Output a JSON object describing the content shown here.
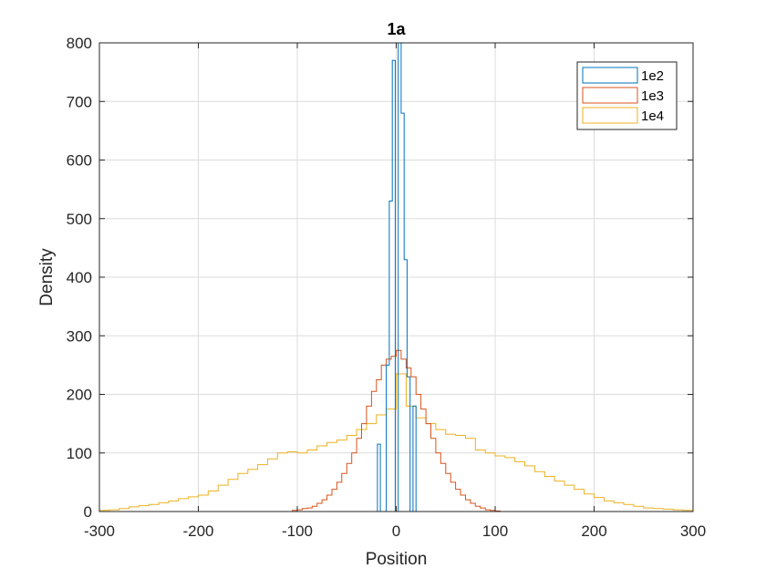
{
  "chart_data": {
    "type": "histogram",
    "title": "1a",
    "xlabel": "Position",
    "ylabel": "Density",
    "xlim": [
      -300,
      300
    ],
    "ylim": [
      0,
      800
    ],
    "xticks": [
      -300,
      -200,
      -100,
      0,
      100,
      200,
      300
    ],
    "yticks": [
      0,
      100,
      200,
      300,
      400,
      500,
      600,
      700,
      800
    ],
    "grid": true,
    "legend_position": "top-right",
    "series": [
      {
        "name": "1e2",
        "color": "#0072BD",
        "style": "stairs",
        "edges": [
          -22,
          -19,
          -16,
          -13,
          -10,
          -7,
          -4,
          -1,
          2,
          5,
          8,
          11,
          14,
          17,
          20,
          23
        ],
        "values": [
          0,
          115,
          0,
          0,
          250,
          530,
          770,
          0,
          800,
          680,
          430,
          230,
          0,
          180,
          0
        ]
      },
      {
        "name": "1e3",
        "color": "#D95319",
        "style": "stairs",
        "edges": [
          -105,
          -100,
          -95,
          -90,
          -85,
          -80,
          -75,
          -70,
          -65,
          -60,
          -55,
          -50,
          -45,
          -40,
          -35,
          -30,
          -25,
          -20,
          -15,
          -10,
          -5,
          0,
          5,
          10,
          15,
          20,
          25,
          30,
          35,
          40,
          45,
          50,
          55,
          60,
          65,
          70,
          75,
          80,
          85,
          90,
          95,
          100,
          105
        ],
        "values": [
          2,
          3,
          5,
          6,
          9,
          14,
          20,
          28,
          38,
          50,
          65,
          82,
          100,
          125,
          150,
          180,
          205,
          225,
          250,
          260,
          265,
          275,
          260,
          245,
          230,
          200,
          175,
          150,
          125,
          100,
          82,
          65,
          50,
          38,
          28,
          20,
          14,
          9,
          6,
          3,
          2,
          1
        ]
      },
      {
        "name": "1e4",
        "color": "#EDB120",
        "style": "stairs",
        "edges": [
          -300,
          -290,
          -280,
          -270,
          -260,
          -250,
          -240,
          -230,
          -220,
          -210,
          -200,
          -190,
          -180,
          -170,
          -160,
          -150,
          -140,
          -130,
          -120,
          -110,
          -100,
          -90,
          -80,
          -70,
          -60,
          -50,
          -40,
          -30,
          -20,
          -10,
          0,
          10,
          20,
          30,
          40,
          50,
          60,
          70,
          80,
          90,
          100,
          110,
          120,
          130,
          140,
          150,
          160,
          170,
          180,
          190,
          200,
          210,
          220,
          230,
          240,
          250,
          260,
          270,
          280,
          290,
          300
        ],
        "values": [
          2,
          3,
          5,
          8,
          10,
          12,
          15,
          18,
          22,
          25,
          28,
          35,
          45,
          55,
          65,
          72,
          80,
          90,
          100,
          102,
          100,
          105,
          112,
          118,
          122,
          130,
          140,
          150,
          165,
          175,
          235,
          180,
          160,
          150,
          140,
          132,
          130,
          125,
          105,
          100,
          95,
          92,
          85,
          78,
          68,
          60,
          52,
          45,
          38,
          30,
          24,
          18,
          15,
          12,
          9,
          6,
          5,
          4,
          3,
          2
        ]
      }
    ]
  }
}
